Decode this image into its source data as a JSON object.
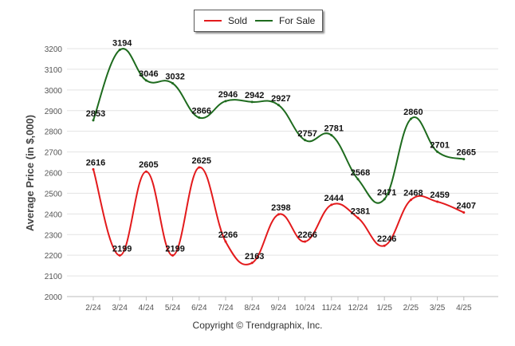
{
  "chart_data": {
    "type": "line",
    "categories": [
      "2/24",
      "3/24",
      "4/24",
      "5/24",
      "6/24",
      "7/24",
      "8/24",
      "9/24",
      "10/24",
      "11/24",
      "12/24",
      "1/25",
      "2/25",
      "3/25",
      "4/25"
    ],
    "series": [
      {
        "name": "Sold",
        "color": "#e31a1c",
        "values": [
          2616,
          2199,
          2605,
          2199,
          2625,
          2266,
          2163,
          2398,
          2266,
          2444,
          2381,
          2246,
          2468,
          2459,
          2407
        ]
      },
      {
        "name": "For Sale",
        "color": "#1e6b1e",
        "values": [
          2853,
          3194,
          3046,
          3032,
          2866,
          2946,
          2942,
          2927,
          2757,
          2781,
          2568,
          2471,
          2860,
          2701,
          2665
        ]
      }
    ],
    "ylabel": "Average Price (in $,000)",
    "xlabel": "",
    "ylim": [
      2000,
      3200
    ],
    "yticks": [
      2000,
      2100,
      2200,
      2300,
      2400,
      2500,
      2600,
      2700,
      2800,
      2900,
      3000,
      3100,
      3200
    ],
    "grid": true,
    "legend_position": "top-center"
  },
  "legend": {
    "sold_label": "Sold",
    "for_sale_label": "For Sale"
  },
  "copyright": "Copyright © Trendgraphix, Inc."
}
